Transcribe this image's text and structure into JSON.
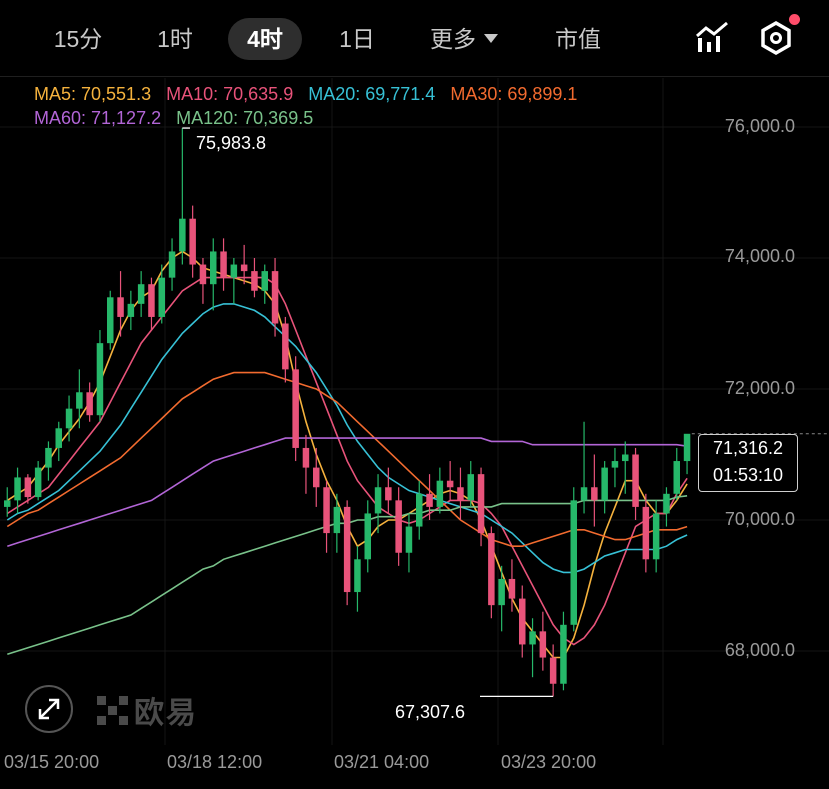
{
  "toolbar": {
    "intervals": [
      {
        "label": "15分",
        "active": false
      },
      {
        "label": "1时",
        "active": false
      },
      {
        "label": "4时",
        "active": true
      },
      {
        "label": "1日",
        "active": false
      }
    ],
    "more_label": "更多",
    "market_cap_label": "市值",
    "icons": [
      "indicator-chart-icon",
      "settings-hexagon-icon"
    ]
  },
  "ma_legend": [
    {
      "label": "MA5: 70,551.3",
      "color": "#f5b23d"
    },
    {
      "label": "MA10: 70,635.9",
      "color": "#e8537a"
    },
    {
      "label": "MA20: 69,771.4",
      "color": "#37c1d6"
    },
    {
      "label": "MA30: 69,899.1",
      "color": "#f26b2f"
    },
    {
      "label": "MA60: 71,127.2",
      "color": "#b265d6"
    },
    {
      "label": "MA120: 70,369.5",
      "color": "#79c28a"
    }
  ],
  "chart_data": {
    "type": "candlestick",
    "y_ticks": [
      "76,000.0",
      "74,000.0",
      "72,000.0",
      "70,000.0",
      "68,000.0"
    ],
    "y_tick_values": [
      76000,
      74000,
      72000,
      70000,
      68000
    ],
    "x_ticks": [
      "03/15 20:00",
      "03/18 12:00",
      "03/21 04:00",
      "03/23 20:00"
    ],
    "high_marker": {
      "label": "75,983.8",
      "value": 75983.8
    },
    "low_marker": {
      "label": "67,307.6",
      "value": 67307.6
    },
    "current_price": "71,316.2",
    "countdown": "01:53:10",
    "up_color": "#26b86a",
    "down_color": "#e8537a",
    "candles": [
      [
        70200,
        70500,
        70050,
        70300
      ],
      [
        70300,
        70800,
        70100,
        70650
      ],
      [
        70650,
        70700,
        70250,
        70350
      ],
      [
        70350,
        70900,
        70300,
        70800
      ],
      [
        70800,
        71200,
        70600,
        71100
      ],
      [
        71100,
        71500,
        70900,
        71400
      ],
      [
        71400,
        71900,
        71200,
        71700
      ],
      [
        71700,
        72300,
        71400,
        71950
      ],
      [
        71950,
        72100,
        71500,
        71600
      ],
      [
        71600,
        72900,
        71500,
        72700
      ],
      [
        72700,
        73500,
        72600,
        73400
      ],
      [
        73400,
        73800,
        72800,
        73100
      ],
      [
        73100,
        73500,
        72900,
        73300
      ],
      [
        73300,
        73800,
        73100,
        73600
      ],
      [
        73600,
        73700,
        72900,
        73100
      ],
      [
        73100,
        73900,
        73000,
        73700
      ],
      [
        73700,
        74300,
        73500,
        74100
      ],
      [
        74100,
        75983.8,
        73900,
        74600
      ],
      [
        74600,
        74800,
        73700,
        73900
      ],
      [
        73900,
        74000,
        73300,
        73600
      ],
      [
        73600,
        74300,
        73200,
        74100
      ],
      [
        74100,
        74300,
        73500,
        73700
      ],
      [
        73700,
        74000,
        73300,
        73900
      ],
      [
        73900,
        74200,
        73600,
        73800
      ],
      [
        73800,
        74000,
        73400,
        73500
      ],
      [
        73500,
        73900,
        73300,
        73800
      ],
      [
        73800,
        74000,
        72800,
        73000
      ],
      [
        73000,
        73100,
        72100,
        72300
      ],
      [
        72300,
        72500,
        70900,
        71100
      ],
      [
        71100,
        71300,
        70400,
        70800
      ],
      [
        70800,
        71100,
        70200,
        70500
      ],
      [
        70500,
        70600,
        69500,
        69800
      ],
      [
        69800,
        70400,
        69500,
        70200
      ],
      [
        70200,
        70300,
        68700,
        68900
      ],
      [
        68900,
        69600,
        68600,
        69400
      ],
      [
        69400,
        70300,
        69200,
        70100
      ],
      [
        70100,
        70700,
        69800,
        70500
      ],
      [
        70500,
        70800,
        70100,
        70300
      ],
      [
        70300,
        70500,
        69300,
        69500
      ],
      [
        69500,
        70100,
        69200,
        69900
      ],
      [
        69900,
        70600,
        69700,
        70400
      ],
      [
        70400,
        70700,
        70000,
        70200
      ],
      [
        70200,
        70800,
        70100,
        70600
      ],
      [
        70600,
        70900,
        70300,
        70500
      ],
      [
        70500,
        70800,
        70000,
        70300
      ],
      [
        70300,
        70900,
        70200,
        70700
      ],
      [
        70700,
        70800,
        69600,
        69800
      ],
      [
        69800,
        69900,
        68500,
        68700
      ],
      [
        68700,
        69300,
        68300,
        69100
      ],
      [
        69100,
        69400,
        68600,
        68800
      ],
      [
        68800,
        69000,
        67900,
        68100
      ],
      [
        68100,
        68500,
        67600,
        68300
      ],
      [
        68300,
        68600,
        67700,
        67900
      ],
      [
        67900,
        68100,
        67307.6,
        67500
      ],
      [
        67500,
        68600,
        67400,
        68400
      ],
      [
        68400,
        70500,
        68300,
        70300
      ],
      [
        70300,
        71500,
        70100,
        70500
      ],
      [
        70500,
        71000,
        69900,
        70300
      ],
      [
        70300,
        70900,
        70100,
        70800
      ],
      [
        70800,
        71100,
        70500,
        70900
      ],
      [
        70900,
        71200,
        70400,
        71000
      ],
      [
        71000,
        71100,
        70000,
        70200
      ],
      [
        70200,
        70400,
        69200,
        69400
      ],
      [
        69400,
        70300,
        69200,
        70100
      ],
      [
        70100,
        70500,
        69900,
        70400
      ],
      [
        70400,
        71100,
        70300,
        70900
      ],
      [
        70900,
        71300,
        70700,
        71316.2
      ]
    ],
    "ma_lines": [
      {
        "name": "MA5",
        "values": [
          70300,
          70400,
          70500,
          70700,
          70900,
          71150,
          71350,
          71550,
          71800,
          72100,
          72500,
          72900,
          73200,
          73400,
          73500,
          73800,
          74000,
          74100,
          74000,
          73850,
          73800,
          73750,
          73700,
          73650,
          73600,
          73500,
          73300,
          72800,
          72100,
          71500,
          71000,
          70600,
          70300,
          69900,
          69600,
          69700,
          69900,
          70000,
          70000,
          70100,
          70200,
          70300,
          70400,
          70450,
          70400,
          70300,
          70000,
          69600,
          69200,
          68800,
          68500,
          68300,
          68100,
          67900,
          67900,
          68200,
          68700,
          69300,
          69800,
          70200,
          70600,
          70600,
          70300,
          70100,
          70100,
          70300,
          70551
        ]
      },
      {
        "name": "MA10",
        "values": [
          70100,
          70200,
          70300,
          70400,
          70500,
          70700,
          70900,
          71100,
          71300,
          71500,
          71800,
          72100,
          72400,
          72700,
          72900,
          73100,
          73300,
          73500,
          73600,
          73700,
          73700,
          73700,
          73700,
          73700,
          73700,
          73700,
          73600,
          73300,
          72900,
          72500,
          72100,
          71700,
          71300,
          70900,
          70600,
          70400,
          70200,
          70100,
          70000,
          69950,
          70000,
          70100,
          70200,
          70300,
          70300,
          70300,
          70250,
          70100,
          69900,
          69600,
          69300,
          69000,
          68700,
          68400,
          68200,
          68100,
          68200,
          68400,
          68700,
          69100,
          69500,
          69900,
          70000,
          70100,
          70100,
          70400,
          70636
        ]
      },
      {
        "name": "MA20",
        "values": [
          70000,
          70100,
          70150,
          70250,
          70350,
          70450,
          70600,
          70750,
          70900,
          71050,
          71250,
          71450,
          71700,
          71950,
          72200,
          72450,
          72650,
          72850,
          73000,
          73150,
          73250,
          73300,
          73300,
          73250,
          73200,
          73100,
          72950,
          72800,
          72650,
          72450,
          72250,
          72000,
          71750,
          71450,
          71200,
          71000,
          70800,
          70650,
          70550,
          70450,
          70400,
          70350,
          70300,
          70250,
          70200,
          70150,
          70100,
          70000,
          69900,
          69800,
          69650,
          69500,
          69350,
          69250,
          69200,
          69200,
          69250,
          69350,
          69450,
          69500,
          69550,
          69550,
          69550,
          69550,
          69600,
          69700,
          69771
        ]
      },
      {
        "name": "MA30",
        "values": [
          69900,
          70000,
          70100,
          70150,
          70250,
          70350,
          70450,
          70550,
          70650,
          70750,
          70850,
          70950,
          71100,
          71250,
          71400,
          71550,
          71700,
          71850,
          71950,
          72050,
          72150,
          72200,
          72250,
          72250,
          72250,
          72250,
          72200,
          72150,
          72100,
          72050,
          72000,
          71900,
          71800,
          71650,
          71500,
          71350,
          71200,
          71050,
          70900,
          70750,
          70600,
          70450,
          70300,
          70150,
          70000,
          69900,
          69800,
          69700,
          69650,
          69600,
          69600,
          69650,
          69700,
          69750,
          69800,
          69850,
          69850,
          69800,
          69750,
          69700,
          69700,
          69750,
          69800,
          69850,
          69850,
          69850,
          69899
        ]
      },
      {
        "name": "MA60",
        "values": [
          69600,
          69650,
          69700,
          69750,
          69800,
          69850,
          69900,
          69950,
          70000,
          70050,
          70100,
          70150,
          70200,
          70250,
          70300,
          70400,
          70500,
          70600,
          70700,
          70800,
          70900,
          70950,
          71000,
          71050,
          71100,
          71150,
          71200,
          71250,
          71250,
          71250,
          71250,
          71250,
          71250,
          71250,
          71250,
          71250,
          71250,
          71250,
          71250,
          71250,
          71250,
          71250,
          71250,
          71250,
          71250,
          71250,
          71250,
          71200,
          71200,
          71200,
          71200,
          71150,
          71150,
          71150,
          71150,
          71150,
          71150,
          71150,
          71150,
          71150,
          71150,
          71150,
          71150,
          71150,
          71150,
          71150,
          71127
        ]
      },
      {
        "name": "MA120",
        "values": [
          67950,
          68000,
          68050,
          68100,
          68150,
          68200,
          68250,
          68300,
          68350,
          68400,
          68450,
          68500,
          68550,
          68650,
          68750,
          68850,
          68950,
          69050,
          69150,
          69250,
          69300,
          69400,
          69450,
          69500,
          69550,
          69600,
          69650,
          69700,
          69750,
          69800,
          69850,
          69900,
          69950,
          69950,
          70000,
          70000,
          70050,
          70050,
          70050,
          70100,
          70100,
          70150,
          70150,
          70150,
          70200,
          70200,
          70200,
          70200,
          70250,
          70250,
          70250,
          70250,
          70250,
          70250,
          70250,
          70250,
          70300,
          70300,
          70300,
          70300,
          70300,
          70300,
          70300,
          70300,
          70300,
          70350,
          70370
        ]
      }
    ]
  }
}
